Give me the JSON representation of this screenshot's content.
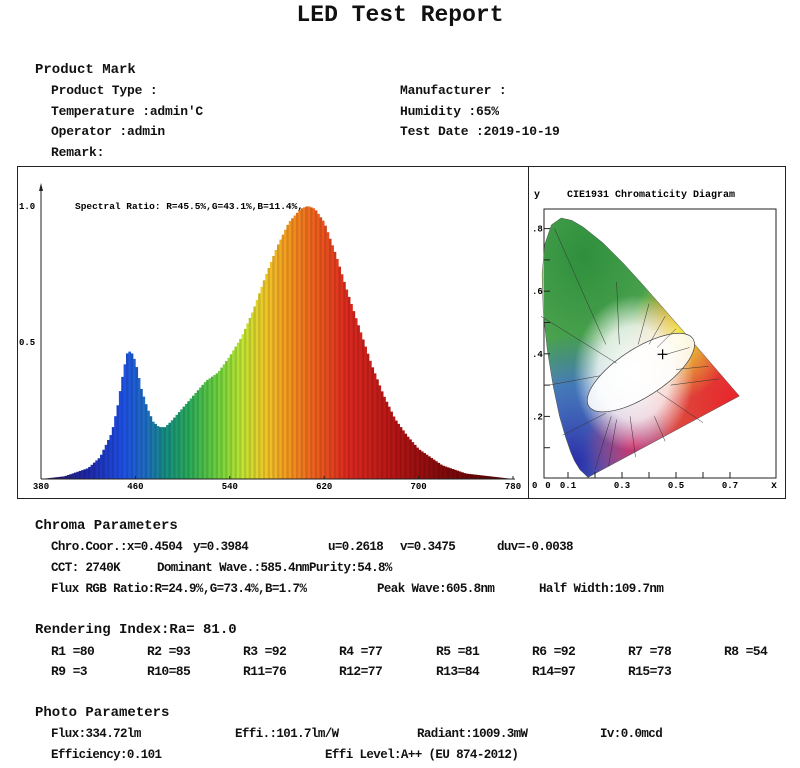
{
  "title": "LED Test Report",
  "product": {
    "heading": "Product Mark",
    "product_type": "Product Type :",
    "manufacturer": "Manufacturer :",
    "temperature": "Temperature :admin'C",
    "humidity": "Humidity :65%",
    "operator": "Operator :admin",
    "test_date": "Test Date :2019-10-19",
    "remark": "Remark:"
  },
  "chart_data": [
    {
      "type": "area",
      "title": "",
      "annotation": "Spectral Ratio:  R=45.5%,G=43.1%,B=11.4%,",
      "xlabel": "",
      "ylabel": "",
      "xlim": [
        380,
        780
      ],
      "ylim": [
        0,
        1.0
      ],
      "x_ticks": [
        "380",
        "460",
        "540",
        "620",
        "700",
        "780"
      ],
      "y_ticks": [
        "1.0",
        "0.5"
      ],
      "grid": false,
      "fill": "wavelength-colored",
      "x": [
        380,
        400,
        420,
        430,
        440,
        445,
        450,
        453,
        456,
        460,
        465,
        470,
        475,
        480,
        485,
        490,
        500,
        510,
        520,
        530,
        540,
        550,
        560,
        570,
        580,
        590,
        600,
        606,
        612,
        620,
        630,
        640,
        650,
        660,
        670,
        680,
        690,
        700,
        720,
        740,
        760,
        780
      ],
      "y": [
        0,
        0.01,
        0.04,
        0.08,
        0.17,
        0.27,
        0.4,
        0.46,
        0.47,
        0.43,
        0.33,
        0.26,
        0.21,
        0.19,
        0.19,
        0.21,
        0.26,
        0.31,
        0.36,
        0.39,
        0.45,
        0.52,
        0.62,
        0.74,
        0.85,
        0.94,
        0.99,
        1.0,
        0.99,
        0.94,
        0.82,
        0.68,
        0.55,
        0.42,
        0.31,
        0.22,
        0.16,
        0.11,
        0.05,
        0.02,
        0.01,
        0
      ]
    },
    {
      "type": "scatter",
      "title": "CIE1931 Chromaticity Diagram",
      "xlabel": "x",
      "ylabel": "y",
      "xlim": [
        0,
        0.75
      ],
      "ylim": [
        0,
        0.85
      ],
      "x_ticks": [
        "0",
        "0.1",
        "0.3",
        "0.5",
        "0.7"
      ],
      "y_ticks": [
        ".8",
        ".6",
        ".4",
        ".2"
      ],
      "y_origin_label": "0",
      "points": [
        {
          "x": 0.4504,
          "y": 0.3984,
          "marker": "cross"
        }
      ]
    }
  ],
  "chroma": {
    "heading": "Chroma Parameters",
    "coor": "Chro.Coor.:x=0.4504",
    "y": "y=0.3984",
    "u": "u=0.2618",
    "v": "v=0.3475",
    "duv": "duv=-0.0038",
    "cct": "CCT: 2740K",
    "dominant": "Dominant Wave.:585.4nm",
    "purity": "Purity:54.8%",
    "flux_rgb": "Flux RGB Ratio:R=24.9%,G=73.4%,B=1.7%",
    "peak": "Peak Wave:605.8nm",
    "half_width": "Half Width:109.7nm"
  },
  "rendering": {
    "heading": "Rendering Index:Ra= 81.0",
    "row1": [
      "R1 =80",
      "R2 =93",
      "R3 =92",
      "R4 =77",
      "R5 =81",
      "R6 =92",
      "R7 =78",
      "R8 =54"
    ],
    "row2": [
      "R9 =3",
      "R10=85",
      "R11=76",
      "R12=77",
      "R13=84",
      "R14=97",
      "R15=73"
    ]
  },
  "photo": {
    "heading": "Photo Parameters",
    "flux": "Flux:334.72lm",
    "effi": "Effi.:101.7lm/W",
    "radiant": "Radiant:1009.3mW",
    "iv": "Iv:0.0mcd",
    "efficiency": "Efficiency:0.101",
    "effi_level": "Effi Level:A++ (EU 874-2012)"
  }
}
